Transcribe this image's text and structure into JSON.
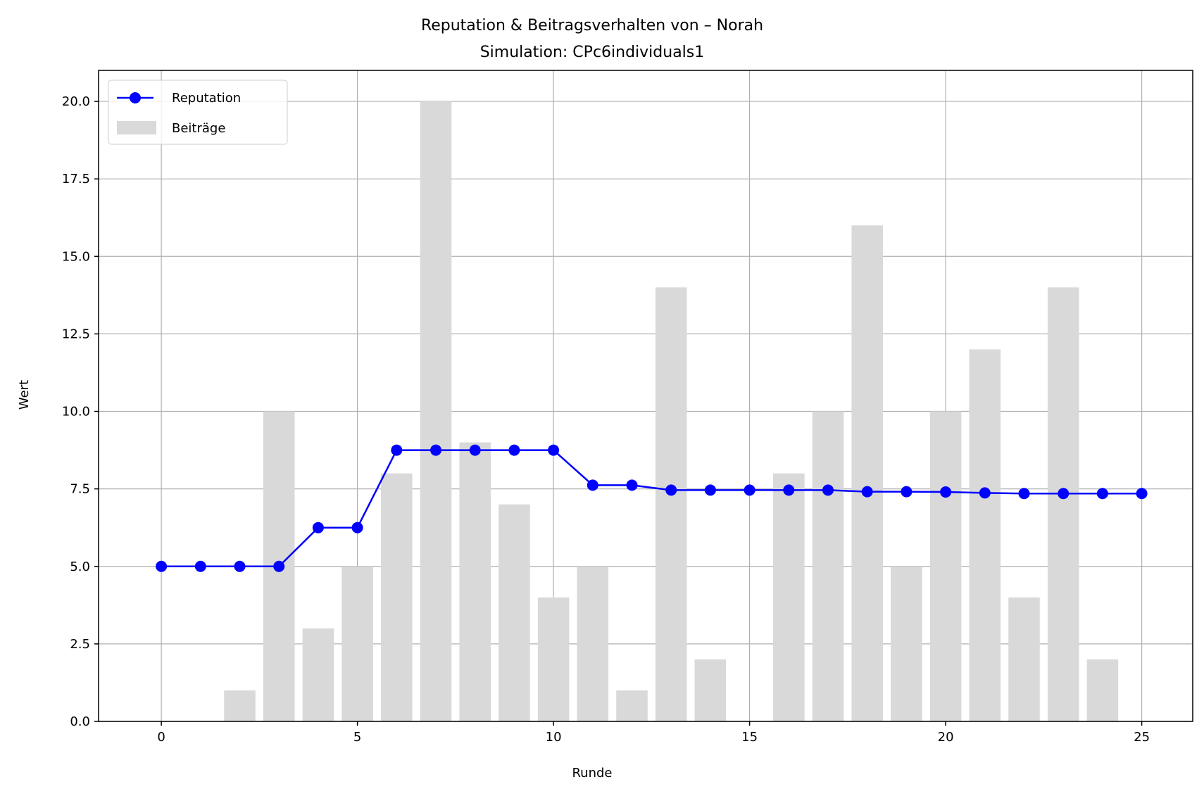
{
  "chart_data": {
    "type": "bar+line",
    "title": "Reputation & Beitragsverhalten von – Norah",
    "subtitle": "Simulation: CPc6individuals1",
    "xlabel": "Runde",
    "ylabel": "Wert",
    "xlim": [
      -1.6,
      26.3
    ],
    "ylim": [
      0,
      21
    ],
    "x_ticks": [
      0,
      5,
      10,
      15,
      20,
      25
    ],
    "y_ticks": [
      0.0,
      2.5,
      5.0,
      7.5,
      10.0,
      12.5,
      15.0,
      17.5,
      20.0
    ],
    "grid": true,
    "legend_position": "top-left",
    "colors": {
      "line": "#0000ff",
      "bars": "#d9d9d9",
      "grid": "#b0b0b0",
      "axes": "#000000"
    },
    "bars": {
      "name": "Beiträge",
      "x": [
        0,
        1,
        2,
        3,
        4,
        5,
        6,
        7,
        8,
        9,
        10,
        11,
        12,
        13,
        14,
        15,
        16,
        17,
        18,
        19,
        20,
        21,
        22,
        23,
        24,
        25
      ],
      "values": [
        0,
        0,
        1,
        10,
        3,
        5,
        8,
        20,
        9,
        7,
        4,
        5,
        1,
        14,
        2,
        0,
        8,
        10,
        16,
        5,
        10,
        12,
        4,
        14,
        2,
        0
      ]
    },
    "series": [
      {
        "name": "Reputation",
        "x": [
          0,
          1,
          2,
          3,
          4,
          5,
          6,
          7,
          8,
          9,
          10,
          11,
          12,
          13,
          14,
          15,
          16,
          17,
          18,
          19,
          20,
          21,
          22,
          23,
          24,
          25
        ],
        "values": [
          5.0,
          5.0,
          5.0,
          5.0,
          6.25,
          6.25,
          8.75,
          8.75,
          8.75,
          8.75,
          8.75,
          7.62,
          7.62,
          7.46,
          7.46,
          7.46,
          7.46,
          7.46,
          7.41,
          7.41,
          7.4,
          7.37,
          7.35,
          7.35,
          7.35,
          7.35
        ]
      }
    ]
  }
}
